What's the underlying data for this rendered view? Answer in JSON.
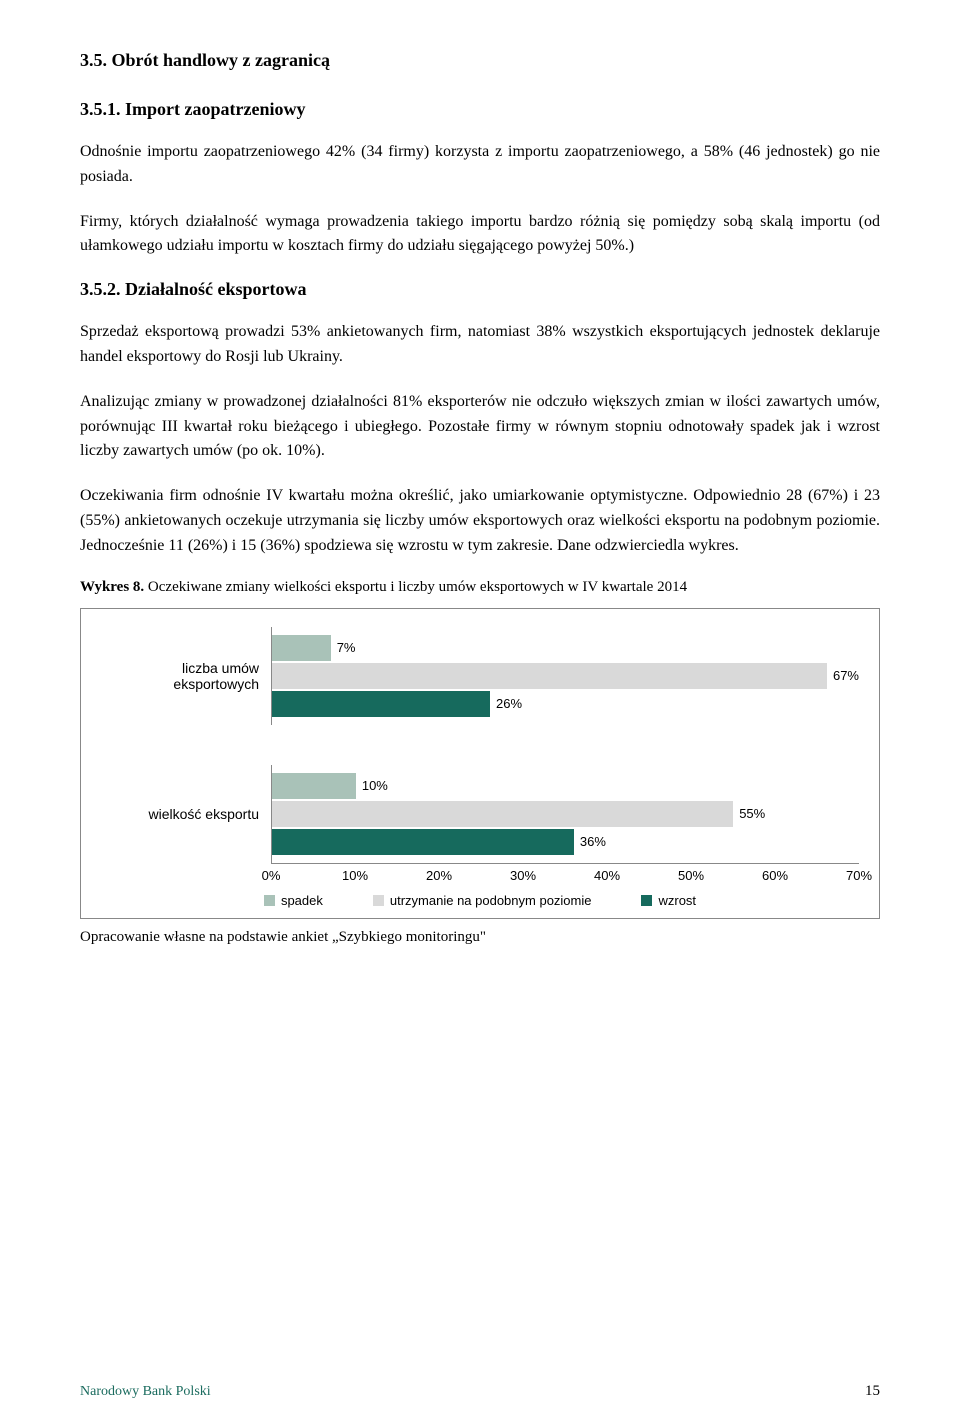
{
  "section": {
    "h1": "3.5.    Obrót handlowy z zagranicą",
    "h2_import": "3.5.1.   Import zaopatrzeniowy",
    "para_import_1": "Odnośnie importu zaopatrzeniowego 42% (34 firmy) korzysta z importu zaopatrzeniowego, a 58% (46 jednostek) go nie posiada.",
    "para_import_2": "Firmy, których działalność wymaga prowadzenia takiego importu bardzo różnią się pomiędzy sobą skalą importu (od ułamkowego udziału importu w kosztach firmy do udziału sięgającego powyżej 50%.)",
    "h2_export": "3.5.2.   Działalność eksportowa",
    "para_export_1": "Sprzedaż eksportową prowadzi 53% ankietowanych firm, natomiast 38% wszystkich eksportujących jednostek deklaruje handel eksportowy do Rosji lub Ukrainy.",
    "para_export_2": "Analizując zmiany w prowadzonej działalności 81% eksporterów nie odczuło większych zmian w ilości zawartych umów, porównując III kwartał roku bieżącego i ubiegłego. Pozostałe firmy w równym stopniu odnotowały spadek jak i wzrost liczby zawartych umów (po ok. 10%).",
    "para_export_3": "Oczekiwania firm odnośnie IV kwartału można określić, jako umiarkowanie optymistyczne. Odpowiednio 28 (67%) i 23 (55%) ankietowanych oczekuje utrzymania się liczby umów eksportowych oraz wielkości eksportu na podobnym poziomie. Jednocześnie 11 (26%) i 15 (36%) spodziewa się wzrostu w tym zakresie. Dane odzwierciedla wykres."
  },
  "chart": {
    "caption_bold": "Wykres 8.",
    "caption_rest": " Oczekiwane zmiany wielkości eksportu i liczby umów eksportowych w IV kwartale 2014",
    "type": "bar",
    "xlim": [
      0,
      70
    ],
    "xtick_step": 10,
    "xticks": [
      "0%",
      "10%",
      "20%",
      "30%",
      "40%",
      "50%",
      "60%",
      "70%"
    ],
    "categories": [
      {
        "label": "liczba umów eksportowych",
        "bars": [
          {
            "series": "spadek",
            "value": 7,
            "label": "7%"
          },
          {
            "series": "utrzymanie",
            "value": 67,
            "label": "67%"
          },
          {
            "series": "wzrost",
            "value": 26,
            "label": "26%"
          }
        ]
      },
      {
        "label": "wielkość eksportu",
        "bars": [
          {
            "series": "spadek",
            "value": 10,
            "label": "10%"
          },
          {
            "series": "utrzymanie",
            "value": 55,
            "label": "55%"
          },
          {
            "series": "wzrost",
            "value": 36,
            "label": "36%"
          }
        ]
      }
    ],
    "series_colors": {
      "spadek": "#a9c2b8",
      "utrzymanie": "#d9d9d9",
      "wzrost": "#166a5d"
    },
    "legend": [
      {
        "series": "spadek",
        "label": "spadek"
      },
      {
        "series": "utrzymanie",
        "label": "utrzymanie na podobnym poziomie"
      },
      {
        "series": "wzrost",
        "label": "wzrost"
      }
    ],
    "source_note": "Opracowanie własne na podstawie ankiet „Szybkiego monitoringu\""
  },
  "footer": {
    "left": "Narodowy Bank Polski",
    "page": "15"
  }
}
